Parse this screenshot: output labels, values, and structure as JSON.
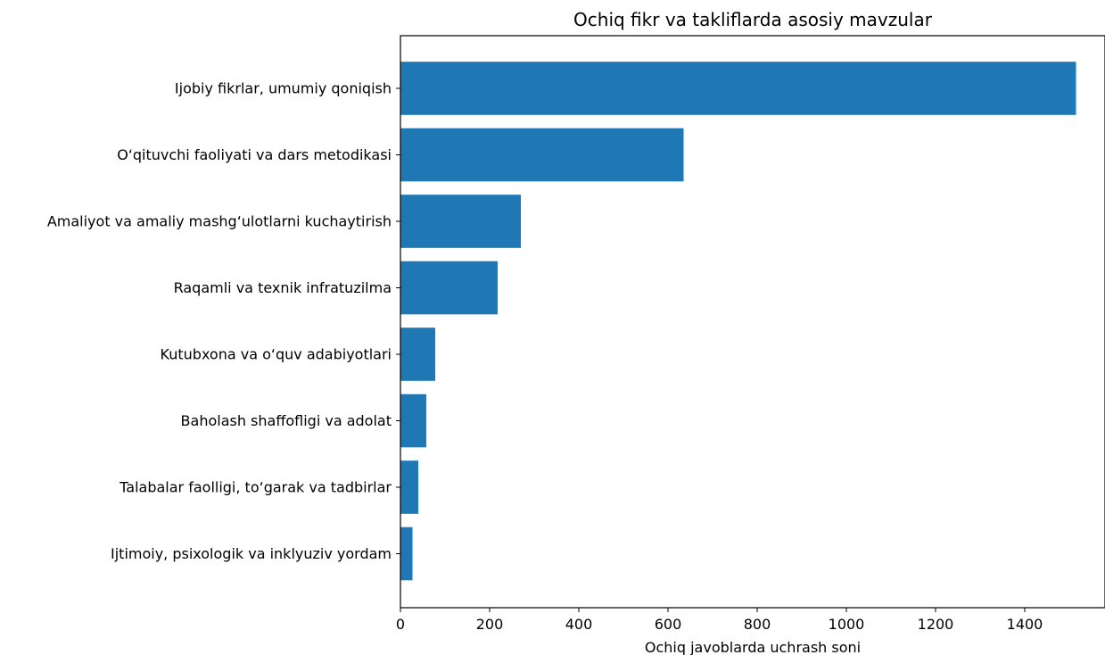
{
  "chart_data": {
    "type": "bar",
    "orientation": "horizontal",
    "title": "Ochiq fikr va takliflarda asosiy mavzular",
    "xlabel": "Ochiq javoblarda uchrash soni",
    "ylabel": "",
    "xlim": [
      0,
      1580
    ],
    "x_ticks": [
      0,
      200,
      400,
      600,
      800,
      1000,
      1200,
      1400
    ],
    "grid": false,
    "bar_color": "#1f77b4",
    "categories": [
      "Ijobiy fikrlar, umumiy qoniqish",
      "O‘qituvchi faoliyati va dars metodikasi",
      "Amaliyot va amaliy mashg‘ulotlarni kuchaytirish",
      "Raqamli va texnik infratuzilma",
      "Kutubxona va o‘quv adabiyotlari",
      "Baholash shaffofligi va adolat",
      "Talabalar faolligi, to‘garak va tadbirlar",
      "Ijtimoiy, psixologik va inklyuziv yordam"
    ],
    "values": [
      1515,
      635,
      270,
      218,
      78,
      58,
      40,
      27
    ]
  }
}
